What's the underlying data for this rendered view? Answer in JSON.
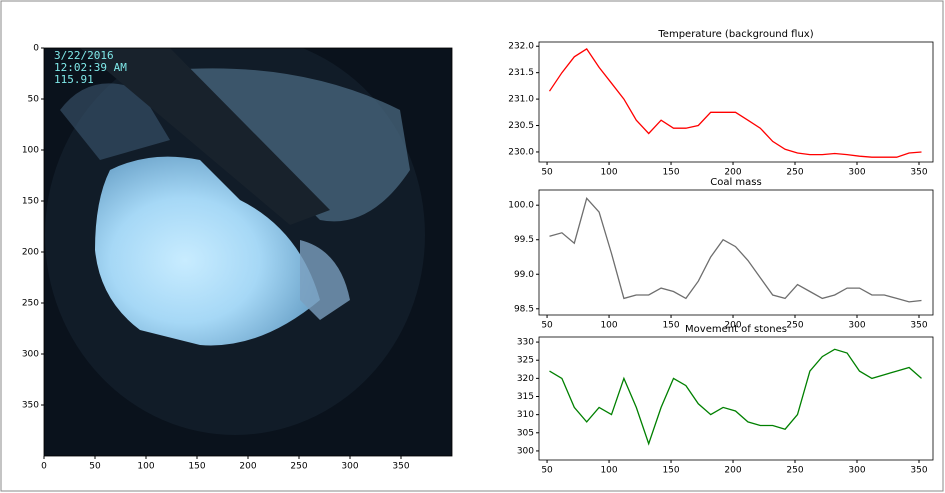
{
  "chart_data": [
    {
      "type": "image",
      "overlay": [
        "3/22/2016",
        "12:02:39 AM",
        "115.91"
      ],
      "xlim": [
        0,
        400
      ],
      "ylim": [
        400,
        0
      ],
      "xticks": [
        0,
        50,
        100,
        150,
        200,
        250,
        300,
        350
      ],
      "yticks": [
        0,
        50,
        100,
        150,
        200,
        250,
        300,
        350
      ]
    },
    {
      "type": "line",
      "title": "Temperature (background flux)",
      "x": [
        52,
        62,
        72,
        82,
        92,
        102,
        112,
        122,
        132,
        142,
        152,
        162,
        172,
        182,
        192,
        202,
        212,
        222,
        232,
        242,
        252,
        262,
        272,
        282,
        292,
        302,
        312,
        322,
        332,
        342,
        352
      ],
      "series": [
        {
          "color": "#ff0000",
          "values": [
            231.15,
            231.5,
            231.8,
            231.95,
            231.6,
            231.3,
            231.0,
            230.6,
            230.35,
            230.6,
            230.45,
            230.45,
            230.5,
            230.75,
            230.75,
            230.75,
            230.6,
            230.45,
            230.2,
            230.05,
            229.98,
            229.95,
            229.95,
            229.97,
            229.95,
            229.92,
            229.9,
            229.9,
            229.9,
            229.98,
            230.0
          ]
        }
      ],
      "xlim": [
        43.5,
        361.3
      ],
      "ylim": [
        229.81,
        232.08
      ],
      "xticks": [
        50,
        100,
        150,
        200,
        250,
        300,
        350
      ],
      "yticks": [
        {
          "value": 230,
          "label": "230.0"
        },
        230.5,
        {
          "value": 231,
          "label": "231.0"
        },
        231.5,
        {
          "value": 232,
          "label": "232.0"
        }
      ]
    },
    {
      "type": "line",
      "title": "Coal mass",
      "x": [
        52,
        62,
        72,
        82,
        92,
        102,
        112,
        122,
        132,
        142,
        152,
        162,
        172,
        182,
        192,
        202,
        212,
        222,
        232,
        242,
        252,
        262,
        272,
        282,
        292,
        302,
        312,
        322,
        332,
        342,
        352
      ],
      "series": [
        {
          "color": "#6e6e6e",
          "values": [
            99.55,
            99.6,
            99.45,
            100.1,
            99.9,
            99.3,
            98.65,
            98.7,
            98.7,
            98.8,
            98.75,
            98.65,
            98.9,
            99.25,
            99.5,
            99.4,
            99.2,
            98.95,
            98.7,
            98.65,
            98.85,
            98.75,
            98.65,
            98.7,
            98.8,
            98.8,
            98.7,
            98.7,
            98.65,
            98.6,
            98.62
          ]
        }
      ],
      "xlim": [
        43.5,
        361.3
      ],
      "ylim": [
        98.41,
        100.22
      ],
      "xticks": [
        50,
        100,
        150,
        200,
        250,
        300,
        350
      ],
      "yticks": [
        98.5,
        {
          "value": 99,
          "label": "99.0"
        },
        99.5,
        {
          "value": 100,
          "label": "100.0"
        }
      ]
    },
    {
      "type": "line",
      "title": "Movement of stones",
      "x": [
        52,
        62,
        72,
        82,
        92,
        102,
        112,
        122,
        132,
        142,
        152,
        162,
        172,
        182,
        192,
        202,
        212,
        222,
        232,
        242,
        252,
        262,
        272,
        282,
        292,
        302,
        312,
        322,
        332,
        342,
        352
      ],
      "series": [
        {
          "color": "#008000",
          "values": [
            322,
            320,
            312,
            308,
            312,
            310,
            320,
            312,
            302,
            312,
            320,
            318,
            313,
            310,
            312,
            311,
            308,
            307,
            307,
            306,
            310,
            322,
            326,
            328,
            327,
            322,
            320,
            321,
            322,
            323,
            320
          ]
        }
      ],
      "xlim": [
        43.5,
        361.3
      ],
      "ylim": [
        297.5,
        331.4
      ],
      "xticks": [
        50,
        100,
        150,
        200,
        250,
        300,
        350
      ],
      "yticks": [
        300,
        305,
        310,
        315,
        320,
        325,
        330
      ]
    }
  ]
}
